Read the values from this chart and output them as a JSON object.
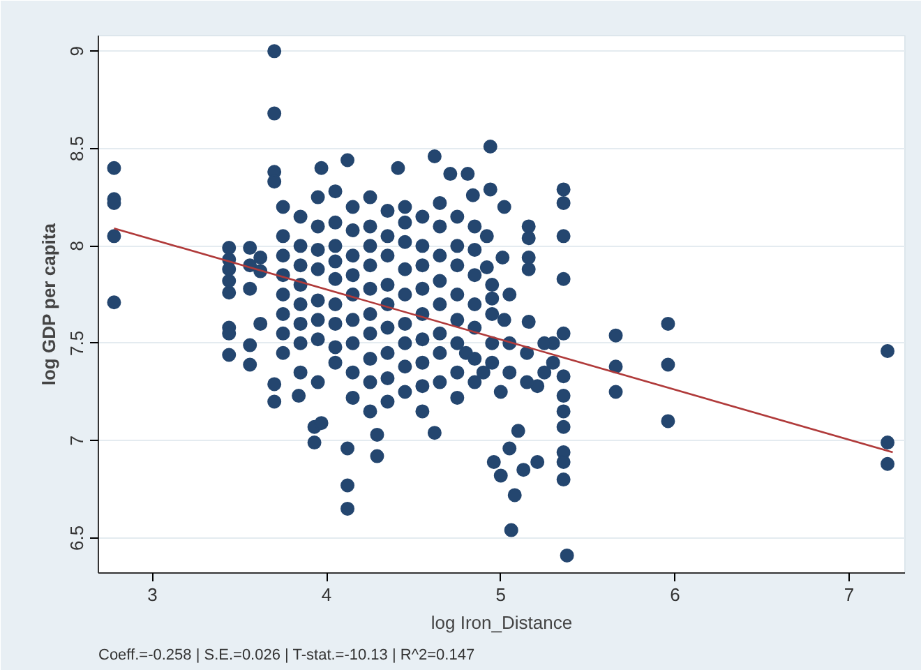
{
  "chart_data": {
    "type": "scatter",
    "xlabel": "log Iron_Distance",
    "ylabel": "log GDP per capita",
    "annotations": [
      "Coeff.=-0.258 | S.E.=0.026 | T-stat.=-10.13 | R^2=0.147"
    ],
    "xlim": [
      2.69,
      7.32
    ],
    "ylim": [
      6.32,
      9.08
    ],
    "xticks": [
      3,
      4,
      5,
      6,
      7
    ],
    "yticks": [
      6.5,
      7,
      7.5,
      8,
      8.5,
      9
    ],
    "grid": "y",
    "marker": "circle",
    "series": [
      {
        "color": "#24466f",
        "x": [
          2.78,
          2.78,
          2.78,
          2.78,
          2.78,
          3.44,
          3.44,
          3.44,
          3.44,
          3.44,
          3.44,
          3.44,
          3.44,
          3.56,
          3.56,
          3.56,
          3.56,
          3.56,
          3.62,
          3.62,
          3.62,
          3.7,
          3.7,
          3.7,
          3.7,
          3.7,
          3.7,
          3.84,
          3.93,
          3.93,
          3.97,
          4.12,
          4.12,
          4.12,
          4.29,
          4.29,
          4.62,
          3.97,
          4.12,
          4.41,
          4.62,
          4.71,
          4.81,
          4.84,
          4.94,
          4.94,
          5.02,
          5.36,
          5.36,
          5.36,
          5.36,
          5.16,
          5.16,
          5.16,
          5.16,
          5.01,
          4.92,
          4.92,
          4.95,
          5.02,
          5.16,
          5.36,
          5.66,
          5.96,
          5.66,
          5.66,
          5.96,
          5.96,
          7.22,
          7.22,
          7.22,
          5.36,
          5.36,
          5.36,
          5.36,
          5.36,
          5.36,
          5.36,
          5.38,
          5.06,
          5.08,
          5.0,
          4.96,
          5.13,
          5.21,
          5.05,
          5.1,
          5.21,
          5.0,
          4.8,
          4.9,
          5.3,
          5.3,
          3.75,
          3.75,
          3.75,
          3.75,
          3.75,
          3.75,
          3.75,
          3.75,
          3.85,
          3.85,
          3.85,
          3.85,
          3.85,
          3.85,
          3.85,
          3.85,
          3.95,
          3.95,
          3.95,
          3.95,
          3.95,
          3.95,
          3.95,
          3.95,
          4.05,
          4.05,
          4.05,
          4.05,
          4.05,
          4.05,
          4.05,
          4.05,
          4.05,
          4.15,
          4.15,
          4.15,
          4.15,
          4.15,
          4.15,
          4.15,
          4.15,
          4.15,
          4.25,
          4.25,
          4.25,
          4.25,
          4.25,
          4.25,
          4.25,
          4.25,
          4.25,
          4.25,
          4.35,
          4.35,
          4.35,
          4.35,
          4.35,
          4.35,
          4.35,
          4.35,
          4.35,
          4.45,
          4.45,
          4.45,
          4.45,
          4.45,
          4.45,
          4.45,
          4.45,
          4.45,
          4.55,
          4.55,
          4.55,
          4.55,
          4.55,
          4.55,
          4.55,
          4.55,
          4.55,
          4.65,
          4.65,
          4.65,
          4.65,
          4.65,
          4.65,
          4.65,
          4.65,
          4.75,
          4.75,
          4.75,
          4.75,
          4.75,
          4.75,
          4.75,
          4.75,
          4.85,
          4.85,
          4.85,
          4.85,
          4.85,
          4.85,
          4.85,
          4.95,
          4.95,
          4.95,
          4.95,
          5.05,
          5.05,
          5.05,
          5.15,
          5.15,
          5.25,
          5.25
        ],
        "values": [
          8.4,
          8.24,
          8.22,
          8.05,
          7.71,
          7.99,
          7.93,
          7.88,
          7.82,
          7.76,
          7.58,
          7.55,
          7.44,
          7.99,
          7.9,
          7.78,
          7.49,
          7.39,
          7.94,
          7.87,
          7.6,
          9.0,
          8.68,
          8.38,
          8.33,
          7.29,
          7.2,
          7.23,
          7.07,
          6.99,
          7.09,
          6.96,
          6.77,
          6.65,
          7.03,
          6.92,
          7.04,
          8.4,
          8.44,
          8.4,
          8.46,
          8.37,
          8.37,
          8.26,
          8.51,
          8.29,
          8.2,
          8.29,
          8.22,
          8.05,
          7.83,
          8.1,
          8.04,
          7.94,
          7.88,
          7.94,
          8.05,
          7.89,
          7.73,
          7.62,
          7.61,
          7.55,
          7.54,
          7.6,
          7.38,
          7.25,
          7.39,
          7.1,
          7.46,
          6.99,
          6.88,
          7.33,
          7.23,
          7.15,
          7.07,
          6.94,
          6.89,
          6.8,
          6.41,
          6.54,
          6.72,
          6.82,
          6.89,
          6.85,
          6.89,
          6.96,
          7.05,
          7.28,
          7.25,
          7.45,
          7.35,
          7.4,
          7.5,
          8.2,
          8.05,
          7.95,
          7.85,
          7.75,
          7.65,
          7.55,
          7.45,
          8.15,
          8.0,
          7.9,
          7.8,
          7.7,
          7.6,
          7.5,
          7.35,
          8.25,
          8.1,
          7.98,
          7.88,
          7.72,
          7.62,
          7.52,
          7.3,
          8.28,
          8.12,
          8.0,
          7.92,
          7.83,
          7.7,
          7.6,
          7.48,
          7.4,
          8.2,
          8.08,
          7.95,
          7.85,
          7.75,
          7.62,
          7.5,
          7.35,
          7.22,
          8.25,
          8.1,
          8.0,
          7.9,
          7.78,
          7.65,
          7.55,
          7.42,
          7.3,
          7.15,
          8.18,
          8.05,
          7.95,
          7.8,
          7.7,
          7.58,
          7.45,
          7.32,
          7.2,
          8.2,
          8.12,
          8.02,
          7.88,
          7.75,
          7.6,
          7.5,
          7.38,
          7.25,
          8.15,
          8.0,
          7.9,
          7.78,
          7.65,
          7.52,
          7.4,
          7.28,
          7.15,
          8.22,
          8.1,
          7.95,
          7.82,
          7.7,
          7.55,
          7.45,
          7.3,
          8.15,
          8.0,
          7.9,
          7.75,
          7.62,
          7.5,
          7.35,
          7.22,
          8.1,
          7.98,
          7.85,
          7.7,
          7.58,
          7.42,
          7.3,
          7.8,
          7.65,
          7.5,
          7.4,
          7.75,
          7.5,
          7.35,
          7.45,
          7.3,
          7.5,
          7.35
        ]
      },
      {
        "type": "line",
        "color": "#b03a3a",
        "marker": "none",
        "x": [
          2.78,
          7.25
        ],
        "values": [
          8.09,
          6.94
        ]
      }
    ]
  }
}
